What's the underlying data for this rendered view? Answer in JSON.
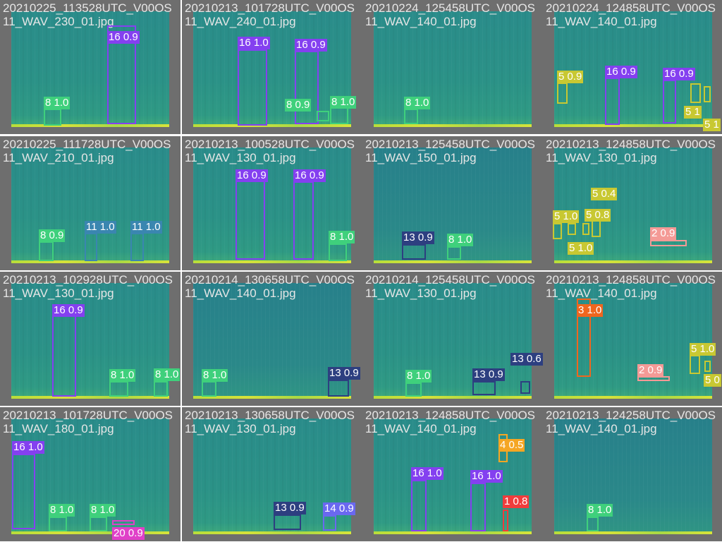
{
  "class_colors": {
    "16": "#8440f0",
    "8": "#3fd07c",
    "11": "#3a86b0",
    "13": "#2d3f80",
    "5": "#c8c832",
    "2": "#f49a96",
    "3": "#f0661e",
    "20": "#e040c8",
    "14": "#6a68f0",
    "4": "#f5a623",
    "1": "#f03c3c"
  },
  "tiles": [
    {
      "title": "20210225_113528UTC_V00OS11_WAV_230_01.jpg",
      "detections": [
        {
          "cls": "16",
          "label": "16 0.9"
        },
        {
          "cls": "8",
          "label": "8 1.0"
        }
      ]
    },
    {
      "title": "20210213_101728UTC_V00OS11_WAV_240_01.jpg",
      "detections": [
        {
          "cls": "16",
          "label": "16 1.0"
        },
        {
          "cls": "16",
          "label": "16 0.9"
        },
        {
          "cls": "8",
          "label": "8 0.9"
        },
        {
          "cls": "8",
          "label": "8 1.0"
        }
      ]
    },
    {
      "title": "20210224_125458UTC_V00OS11_WAV_140_01.jpg",
      "detections": [
        {
          "cls": "8",
          "label": "8 1.0"
        }
      ]
    },
    {
      "title": "20210224_124858UTC_V00OS11_WAV_140_01.jpg",
      "detections": [
        {
          "cls": "5",
          "label": "5 0.9"
        },
        {
          "cls": "16",
          "label": "16 0.9"
        },
        {
          "cls": "16",
          "label": "16 0.9"
        },
        {
          "cls": "5",
          "label": "5 1"
        },
        {
          "cls": "5",
          "label": "5 1"
        }
      ]
    },
    {
      "title": "20210225_111728UTC_V00OS11_WAV_210_01.jpg",
      "detections": [
        {
          "cls": "8",
          "label": "8 0.9"
        },
        {
          "cls": "11",
          "label": "11 1.0"
        },
        {
          "cls": "11",
          "label": "11 1.0"
        }
      ]
    },
    {
      "title": "20210213_100528UTC_V00OS11_WAV_130_01.jpg",
      "detections": [
        {
          "cls": "16",
          "label": "16 0.9"
        },
        {
          "cls": "16",
          "label": "16 0.9"
        },
        {
          "cls": "8",
          "label": "8 1.0"
        }
      ]
    },
    {
      "title": "20210213_125458UTC_V00OS11_WAV_150_01.jpg",
      "detections": [
        {
          "cls": "13",
          "label": "13 0.9"
        },
        {
          "cls": "8",
          "label": "8 1.0"
        }
      ]
    },
    {
      "title": "20210213_124858UTC_V00OS11_WAV_130_01.jpg",
      "detections": [
        {
          "cls": "5",
          "label": "5 1.0"
        },
        {
          "cls": "5",
          "label": "5 1.0"
        },
        {
          "cls": "5",
          "label": "5 0.8"
        },
        {
          "cls": "5",
          "label": "5 0.4"
        },
        {
          "cls": "2",
          "label": "2 0.9"
        }
      ]
    },
    {
      "title": "20210213_102928UTC_V00OS11_WAV_130_01.jpg",
      "detections": [
        {
          "cls": "16",
          "label": "16 0.9"
        },
        {
          "cls": "8",
          "label": "8 1.0"
        },
        {
          "cls": "8",
          "label": "8 1.0"
        }
      ]
    },
    {
      "title": "20210214_130658UTC_V00OS11_WAV_140_01.jpg",
      "detections": [
        {
          "cls": "8",
          "label": "8 1.0"
        },
        {
          "cls": "13",
          "label": "13 0.9"
        }
      ]
    },
    {
      "title": "20210214_125458UTC_V00OS11_WAV_130_01.jpg",
      "detections": [
        {
          "cls": "8",
          "label": "8 1.0"
        },
        {
          "cls": "13",
          "label": "13 0.9"
        },
        {
          "cls": "13",
          "label": "13 0.6"
        }
      ]
    },
    {
      "title": "20210213_124858UTC_V00OS11_WAV_140_01.jpg",
      "detections": [
        {
          "cls": "3",
          "label": "3 1.0"
        },
        {
          "cls": "2",
          "label": "2 0.9"
        },
        {
          "cls": "5",
          "label": "5 1.0"
        },
        {
          "cls": "5",
          "label": "5 0"
        }
      ]
    },
    {
      "title": "20210213_101728UTC_V00OS11_WAV_180_01.jpg",
      "detections": [
        {
          "cls": "16",
          "label": "16 1.0"
        },
        {
          "cls": "8",
          "label": "8 1.0"
        },
        {
          "cls": "8",
          "label": "8 1.0"
        },
        {
          "cls": "20",
          "label": "20 0.9"
        }
      ]
    },
    {
      "title": "20210213_130658UTC_V00OS11_WAV_130_01.jpg",
      "detections": [
        {
          "cls": "13",
          "label": "13 0.9"
        },
        {
          "cls": "14",
          "label": "14 0.9"
        }
      ]
    },
    {
      "title": "20210213_124858UTC_V00OS11_WAV_140_01.jpg",
      "detections": [
        {
          "cls": "16",
          "label": "16 1.0"
        },
        {
          "cls": "16",
          "label": "16 1.0"
        },
        {
          "cls": "4",
          "label": "4 0.5"
        },
        {
          "cls": "1",
          "label": "1 0.8"
        }
      ]
    },
    {
      "title": "20210213_124258UTC_V00OS11_WAV_140_01.jpg",
      "detections": [
        {
          "cls": "8",
          "label": "8 1.0"
        }
      ]
    }
  ]
}
